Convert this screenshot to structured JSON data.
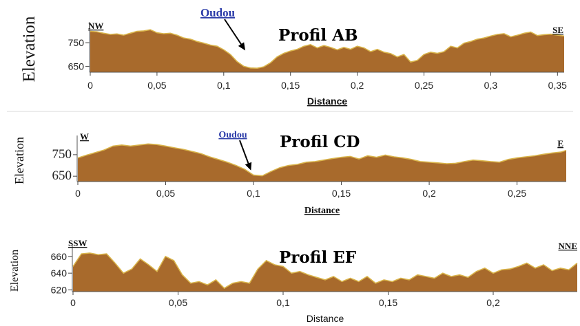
{
  "chart_data": [
    {
      "type": "area",
      "title": "Profil AB",
      "ylabel": "Elevation",
      "xlabel": "Distance",
      "start_label": "NW",
      "end_label": "SE",
      "annotation": "Oudou",
      "annotation_x": 0.115,
      "xlim": [
        0,
        0.355
      ],
      "ylim": [
        625,
        820
      ],
      "x_ticks": [
        "0",
        "0,05",
        "0,1",
        "0,15",
        "0,2",
        "0,25",
        "0,3",
        "0,35"
      ],
      "x_tick_values": [
        0,
        0.05,
        0.1,
        0.15,
        0.2,
        0.25,
        0.3,
        0.35
      ],
      "y_ticks": [
        "650",
        "750"
      ],
      "y_tick_values": [
        650,
        750
      ],
      "fill_color": "#a86a2c",
      "edge_color": "#d9b44a",
      "x": [
        0,
        0.005,
        0.01,
        0.015,
        0.02,
        0.025,
        0.03,
        0.035,
        0.04,
        0.045,
        0.05,
        0.055,
        0.06,
        0.065,
        0.07,
        0.075,
        0.08,
        0.085,
        0.09,
        0.095,
        0.1,
        0.105,
        0.11,
        0.115,
        0.12,
        0.125,
        0.13,
        0.135,
        0.14,
        0.145,
        0.15,
        0.155,
        0.16,
        0.165,
        0.17,
        0.175,
        0.18,
        0.185,
        0.19,
        0.195,
        0.2,
        0.205,
        0.21,
        0.215,
        0.22,
        0.225,
        0.23,
        0.235,
        0.24,
        0.245,
        0.25,
        0.255,
        0.26,
        0.265,
        0.27,
        0.275,
        0.28,
        0.285,
        0.29,
        0.295,
        0.3,
        0.305,
        0.31,
        0.315,
        0.32,
        0.325,
        0.33,
        0.335,
        0.34,
        0.345,
        0.35,
        0.355
      ],
      "y": [
        798,
        796,
        790,
        785,
        787,
        782,
        790,
        798,
        800,
        805,
        792,
        788,
        790,
        782,
        770,
        765,
        755,
        748,
        740,
        735,
        720,
        700,
        670,
        650,
        643,
        642,
        648,
        665,
        690,
        705,
        715,
        722,
        735,
        742,
        728,
        738,
        730,
        720,
        730,
        722,
        735,
        728,
        712,
        722,
        710,
        704,
        690,
        700,
        668,
        675,
        700,
        710,
        705,
        712,
        735,
        728,
        748,
        755,
        765,
        770,
        778,
        785,
        788,
        775,
        782,
        790,
        795,
        780,
        784,
        786,
        782,
        778
      ]
    },
    {
      "type": "area",
      "title": "Profil CD",
      "ylabel": "Elevation",
      "xlabel": "Distance",
      "start_label": "W",
      "end_label": "E",
      "annotation": "Oudou",
      "annotation_x": 0.098,
      "xlim": [
        0,
        0.278
      ],
      "ylim": [
        625,
        820
      ],
      "x_ticks": [
        "0",
        "0,05",
        "0,1",
        "0,15",
        "0,2",
        "0,25"
      ],
      "x_tick_values": [
        0,
        0.05,
        0.1,
        0.15,
        0.2,
        0.25
      ],
      "y_ticks": [
        "650",
        "750"
      ],
      "y_tick_values": [
        650,
        750
      ],
      "fill_color": "#a86a2c",
      "edge_color": "#d9b44a",
      "x": [
        0,
        0.005,
        0.01,
        0.015,
        0.02,
        0.025,
        0.03,
        0.035,
        0.04,
        0.045,
        0.05,
        0.055,
        0.06,
        0.065,
        0.07,
        0.075,
        0.08,
        0.085,
        0.09,
        0.095,
        0.1,
        0.105,
        0.11,
        0.115,
        0.12,
        0.125,
        0.13,
        0.135,
        0.14,
        0.145,
        0.15,
        0.155,
        0.16,
        0.165,
        0.17,
        0.175,
        0.18,
        0.185,
        0.19,
        0.195,
        0.2,
        0.205,
        0.21,
        0.215,
        0.22,
        0.225,
        0.23,
        0.235,
        0.24,
        0.245,
        0.25,
        0.255,
        0.26,
        0.265,
        0.27,
        0.275,
        0.278
      ],
      "y": [
        735,
        748,
        760,
        772,
        790,
        795,
        790,
        795,
        800,
        797,
        790,
        782,
        775,
        765,
        755,
        740,
        728,
        715,
        700,
        682,
        655,
        652,
        672,
        690,
        700,
        705,
        715,
        718,
        725,
        732,
        738,
        742,
        730,
        745,
        738,
        748,
        740,
        735,
        728,
        718,
        715,
        712,
        708,
        710,
        718,
        725,
        722,
        718,
        715,
        728,
        735,
        740,
        745,
        752,
        758,
        762,
        770
      ]
    },
    {
      "type": "area",
      "title": "Profil EF",
      "ylabel": "Elevation",
      "xlabel": "Distance",
      "start_label": "SSW",
      "end_label": "NNE",
      "xlim": [
        0,
        0.24
      ],
      "ylim": [
        618,
        668
      ],
      "x_ticks": [
        "0",
        "0,05",
        "0,1",
        "0,15",
        "0,2"
      ],
      "x_tick_values": [
        0,
        0.05,
        0.1,
        0.15,
        0.2
      ],
      "y_ticks": [
        "620",
        "640",
        "660"
      ],
      "y_tick_values": [
        620,
        640,
        660
      ],
      "fill_color": "#a86a2c",
      "edge_color": "#d9b44a",
      "x": [
        0,
        0.004,
        0.008,
        0.012,
        0.016,
        0.02,
        0.024,
        0.028,
        0.032,
        0.036,
        0.04,
        0.044,
        0.048,
        0.052,
        0.056,
        0.06,
        0.064,
        0.068,
        0.072,
        0.076,
        0.08,
        0.084,
        0.088,
        0.092,
        0.096,
        0.1,
        0.104,
        0.108,
        0.112,
        0.116,
        0.12,
        0.124,
        0.128,
        0.132,
        0.136,
        0.14,
        0.144,
        0.148,
        0.152,
        0.156,
        0.16,
        0.164,
        0.168,
        0.172,
        0.176,
        0.18,
        0.184,
        0.188,
        0.192,
        0.196,
        0.2,
        0.204,
        0.208,
        0.212,
        0.216,
        0.22,
        0.224,
        0.228,
        0.232,
        0.236,
        0.24
      ],
      "y": [
        648,
        663,
        664,
        662,
        663,
        652,
        640,
        645,
        657,
        650,
        642,
        660,
        655,
        638,
        628,
        630,
        626,
        632,
        622,
        628,
        630,
        628,
        645,
        655,
        650,
        648,
        640,
        642,
        638,
        635,
        632,
        636,
        630,
        634,
        630,
        636,
        628,
        632,
        630,
        634,
        632,
        638,
        636,
        634,
        640,
        636,
        638,
        635,
        642,
        646,
        640,
        644,
        645,
        648,
        652,
        646,
        650,
        643,
        646,
        644,
        652
      ]
    }
  ]
}
